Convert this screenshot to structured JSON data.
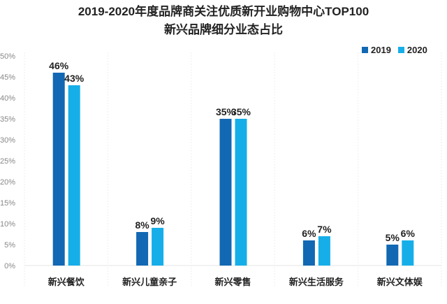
{
  "chart_data": {
    "type": "bar",
    "title": "2019-2020年度品牌商关注优质新开业购物中心TOP100",
    "subtitle": "新兴品牌细分业态占比",
    "categories": [
      "新兴餐饮",
      "新兴儿童亲子",
      "新兴零售",
      "新兴生活服务",
      "新兴文体娱"
    ],
    "series": [
      {
        "name": "2019",
        "values": [
          46,
          8,
          35,
          6,
          5
        ],
        "labels": [
          "46%",
          "8%",
          "35%",
          "6%",
          "5%"
        ],
        "color": "#1268b3"
      },
      {
        "name": "2020",
        "values": [
          43,
          9,
          35,
          7,
          6
        ],
        "labels": [
          "43%",
          "9%",
          "35%",
          "7%",
          "6%"
        ],
        "color": "#16aee8"
      }
    ],
    "yticks": [
      "0%",
      "5%",
      "10%",
      "15%",
      "20%",
      "25%",
      "30%",
      "35%",
      "40%",
      "45%",
      "50%"
    ],
    "ylim": [
      0,
      50
    ],
    "xlabel": "",
    "ylabel": "",
    "grid": false,
    "legend": "top-right"
  }
}
